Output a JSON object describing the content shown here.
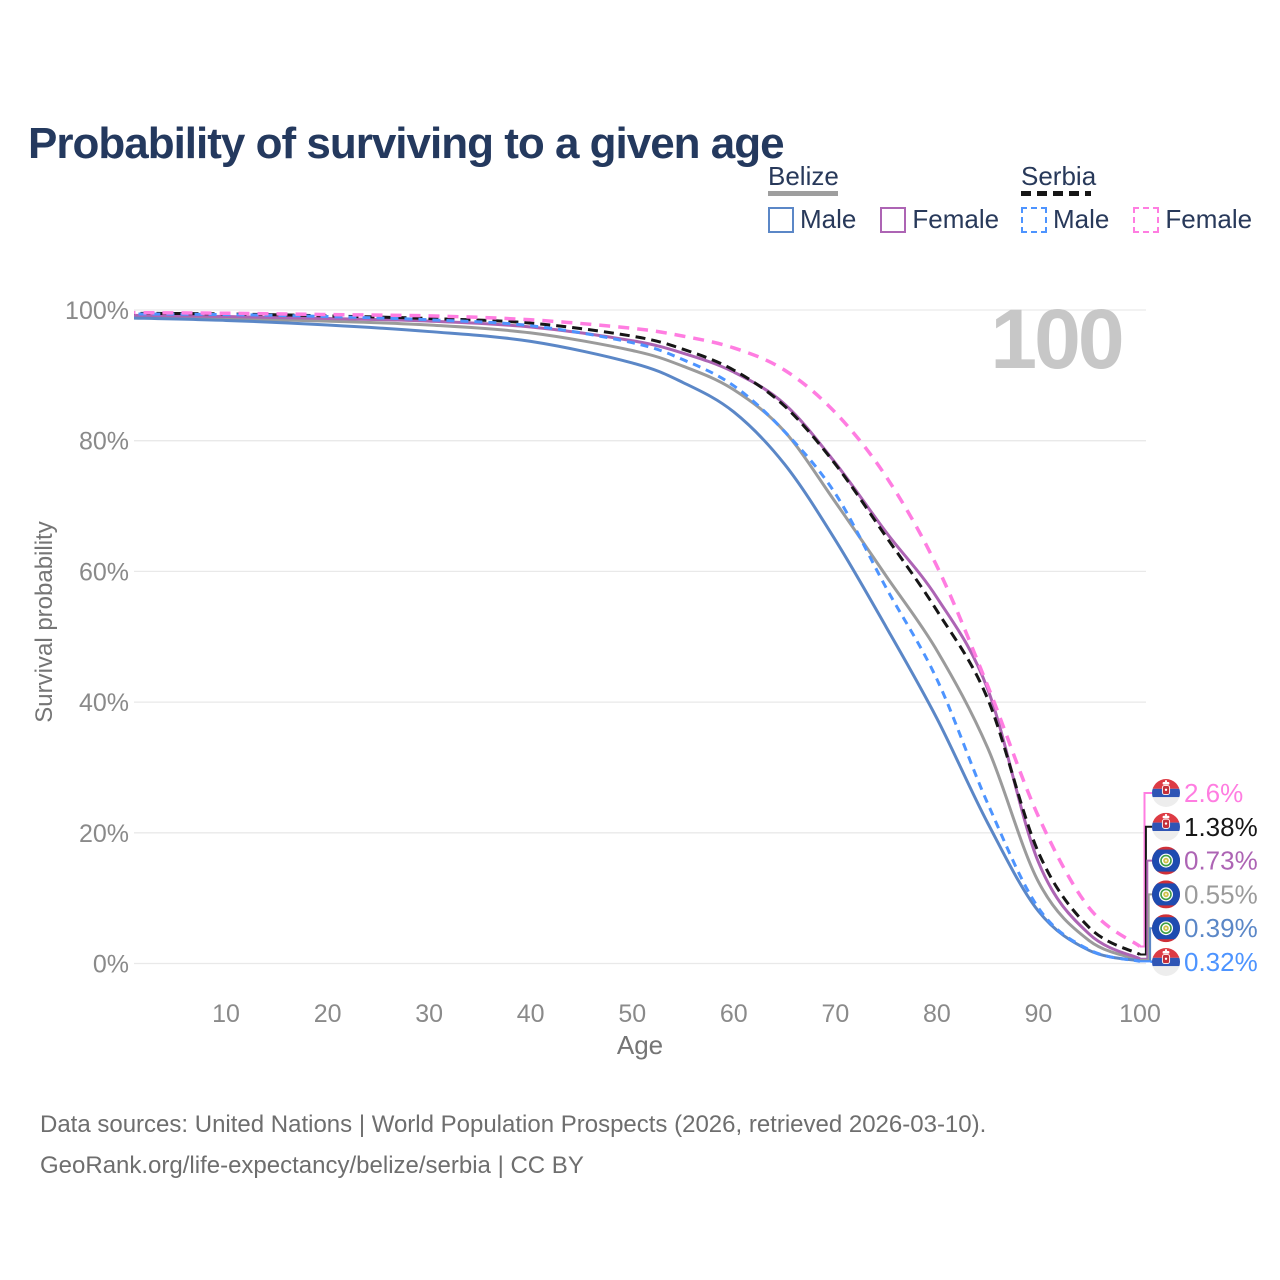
{
  "header": {
    "title": "Probability of surviving to a given age"
  },
  "watermark": "100",
  "legend": {
    "position": "top-right",
    "groups": [
      {
        "country": "Belize",
        "line_style": "solid",
        "underline_color": "#9e9e9e",
        "items": [
          {
            "label": "Male",
            "color": "#5b87c7"
          },
          {
            "label": "Female",
            "color": "#ad64b4"
          }
        ]
      },
      {
        "country": "Serbia",
        "line_style": "dashed",
        "underline_color": "#161616",
        "items": [
          {
            "label": "Male",
            "color": "#4d94ff"
          },
          {
            "label": "Female",
            "color": "#ff7de1"
          }
        ]
      }
    ]
  },
  "chart_data": {
    "type": "line",
    "title": "Probability of surviving to a given age",
    "xlabel": "Age",
    "ylabel": "Survival probability",
    "xlim": [
      0,
      100
    ],
    "ylim": [
      0,
      100
    ],
    "grid": "horizontal",
    "xticks": [
      10,
      20,
      30,
      40,
      50,
      60,
      70,
      80,
      90,
      100
    ],
    "yticks": [
      {
        "v": 0,
        "label": "0%"
      },
      {
        "v": 20,
        "label": "20%"
      },
      {
        "v": 40,
        "label": "40%"
      },
      {
        "v": 60,
        "label": "60%"
      },
      {
        "v": 80,
        "label": "80%"
      },
      {
        "v": 100,
        "label": "100%"
      }
    ],
    "ages": [
      0,
      10,
      20,
      30,
      40,
      50,
      55,
      60,
      65,
      70,
      75,
      80,
      85,
      90,
      95,
      100
    ],
    "series": [
      {
        "name": "Belize Both sexes",
        "country": "Belize",
        "sex": "both",
        "color": "#9b9b9b",
        "line": "solid",
        "width": 3,
        "dash": null,
        "values": [
          99.0,
          98.7,
          98.3,
          97.7,
          96.5,
          93.8,
          91.4,
          87.8,
          81.4,
          70.6,
          59.3,
          47.9,
          33.0,
          12.5,
          3.5,
          0.55
        ],
        "end_label": "0.55%"
      },
      {
        "name": "Belize Female",
        "country": "Belize",
        "sex": "female",
        "color": "#ad64b4",
        "line": "solid",
        "width": 3,
        "dash": null,
        "values": [
          99.2,
          99.0,
          98.7,
          98.3,
          97.4,
          95.3,
          93.4,
          90.5,
          85.6,
          76.6,
          66.0,
          56.0,
          42.0,
          15.5,
          4.5,
          0.73
        ],
        "end_label": "0.73%"
      },
      {
        "name": "Belize Male",
        "country": "Belize",
        "sex": "male",
        "color": "#5b87c7",
        "line": "solid",
        "width": 3,
        "dash": null,
        "values": [
          98.8,
          98.4,
          97.7,
          96.7,
          95.2,
          91.9,
          88.9,
          84.4,
          76.4,
          64.8,
          51.5,
          37.5,
          21.5,
          8.0,
          2.0,
          0.39
        ],
        "end_label": "0.39%"
      },
      {
        "name": "Serbia Both sexes",
        "country": "Serbia",
        "sex": "both",
        "color": "#161616",
        "line": "dashed",
        "width": 3,
        "dash": "10 6",
        "values": [
          99.5,
          99.4,
          99.1,
          98.7,
          98.0,
          96.0,
          94.0,
          90.8,
          85.3,
          76.4,
          65.3,
          54.0,
          40.5,
          17.0,
          5.5,
          1.38
        ],
        "end_label": "1.38%"
      },
      {
        "name": "Serbia Male",
        "country": "Serbia",
        "sex": "male",
        "color": "#4d94ff",
        "line": "dashed",
        "width": 3,
        "dash": "8 6",
        "values": [
          99.4,
          99.3,
          99.0,
          98.5,
          97.6,
          95.0,
          92.4,
          88.4,
          81.4,
          71.9,
          57.5,
          43.5,
          24.5,
          8.5,
          2.1,
          0.32
        ],
        "end_label": "0.32%"
      },
      {
        "name": "Serbia Female",
        "country": "Serbia",
        "sex": "female",
        "color": "#ff7de1",
        "line": "dashed",
        "width": 3.5,
        "dash": "11 8",
        "values": [
          99.6,
          99.5,
          99.3,
          99.1,
          98.5,
          97.2,
          96.0,
          94.2,
          90.8,
          84.3,
          74.5,
          60.8,
          42.5,
          22.5,
          8.5,
          2.6
        ],
        "end_label": "2.6%"
      }
    ],
    "end_labels": [
      {
        "text": "2.6%",
        "series": "Serbia Female",
        "flag": "serbia",
        "color": "#ff7de1",
        "value": 2.6
      },
      {
        "text": "1.38%",
        "series": "Serbia Both sexes",
        "flag": "serbia",
        "color": "#161616",
        "value": 1.38
      },
      {
        "text": "0.73%",
        "series": "Belize Female",
        "flag": "belize",
        "color": "#ad64b4",
        "value": 0.73
      },
      {
        "text": "0.55%",
        "series": "Belize Both sexes",
        "flag": "belize",
        "color": "#9b9b9b",
        "value": 0.55
      },
      {
        "text": "0.39%",
        "series": "Belize Male",
        "flag": "belize",
        "color": "#5b87c7",
        "value": 0.39
      },
      {
        "text": "0.32%",
        "series": "Serbia Male",
        "flag": "serbia",
        "color": "#4d94ff",
        "value": 0.32
      }
    ]
  },
  "footer": {
    "line1": "Data sources: United Nations | World Population Prospects (2026, retrieved 2026-03-10).",
    "line2": "GeoRank.org/life-expectancy/belize/serbia | CC BY"
  }
}
